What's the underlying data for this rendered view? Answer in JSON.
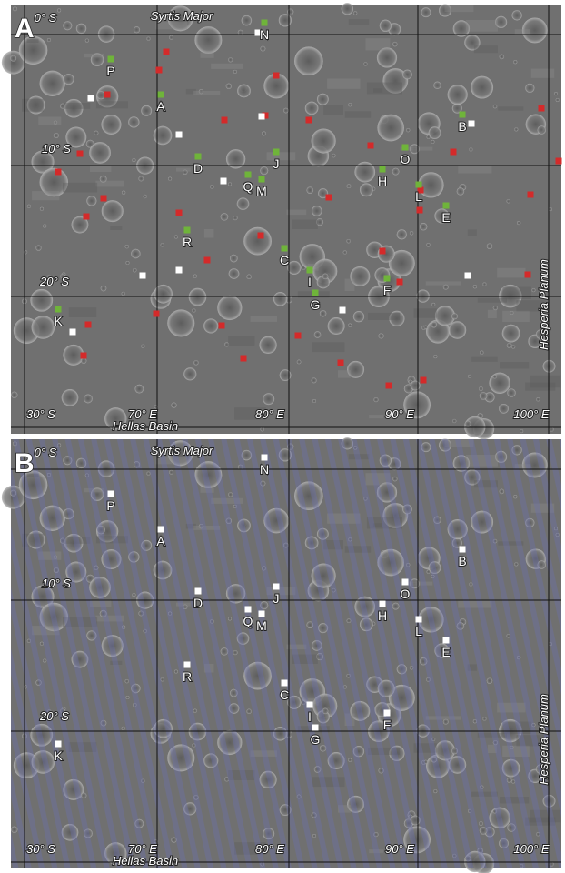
{
  "panels": [
    {
      "label": "A",
      "latitudes": [
        "0° S",
        "10° S",
        "20° S",
        "30° S"
      ],
      "longitudes": [
        "70° E",
        "80° E",
        "90° E",
        "100° E"
      ],
      "regions": [
        "Syrtis Major",
        "Hellas Basin",
        "Hesperia Planum"
      ],
      "sites": [
        "N",
        "P",
        "A",
        "B",
        "D",
        "J",
        "O",
        "H",
        "Q",
        "M",
        "L",
        "E",
        "R",
        "C",
        "I",
        "F",
        "G",
        "K"
      ]
    },
    {
      "label": "B",
      "latitudes": [
        "0° S",
        "10° S",
        "20° S",
        "30° S"
      ],
      "longitudes": [
        "70° E",
        "80° E",
        "90° E",
        "100° E"
      ],
      "regions": [
        "Syrtis Major",
        "Hellas Basin",
        "Hesperia Planum"
      ],
      "sites": [
        "N",
        "P",
        "A",
        "B",
        "D",
        "J",
        "O",
        "H",
        "Q",
        "M",
        "L",
        "E",
        "R",
        "C",
        "I",
        "F",
        "G",
        "K"
      ]
    }
  ]
}
